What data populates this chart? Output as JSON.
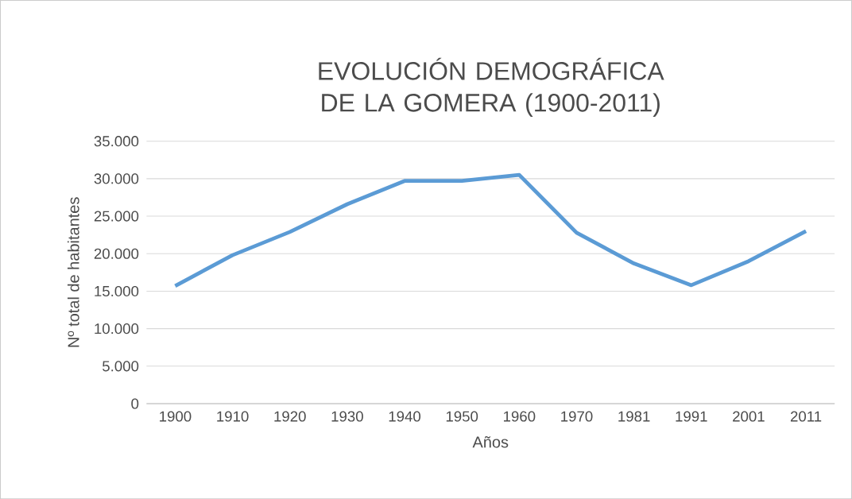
{
  "chart_data": {
    "type": "line",
    "title": "EVOLUCIÓN DEMOGRÁFICA DE LA GOMERA (1900-2011)",
    "xlabel": "Años",
    "ylabel": "Nº total de habitantes",
    "categories": [
      "1900",
      "1910",
      "1920",
      "1930",
      "1940",
      "1950",
      "1960",
      "1970",
      "1981",
      "1991",
      "2001",
      "2011"
    ],
    "series": [
      {
        "color": "#5b9bd5",
        "values": [
          15700,
          19800,
          22900,
          26600,
          29700,
          29700,
          30500,
          22800,
          18700,
          15800,
          19000,
          23000
        ]
      }
    ],
    "ylim": [
      0,
      35000
    ],
    "yticks": [
      0,
      {
        "value": 5000,
        "label": "5.000"
      },
      {
        "value": 10000,
        "label": "10.000"
      },
      {
        "value": 15000,
        "label": "15.000"
      },
      {
        "value": 20000,
        "label": "20.000"
      },
      {
        "value": 25000,
        "label": "25.000"
      },
      {
        "value": 30000,
        "label": "30.000"
      },
      {
        "value": 35000,
        "label": "35.000"
      }
    ],
    "grid": "y",
    "marker": "none",
    "line_style": "solid"
  }
}
